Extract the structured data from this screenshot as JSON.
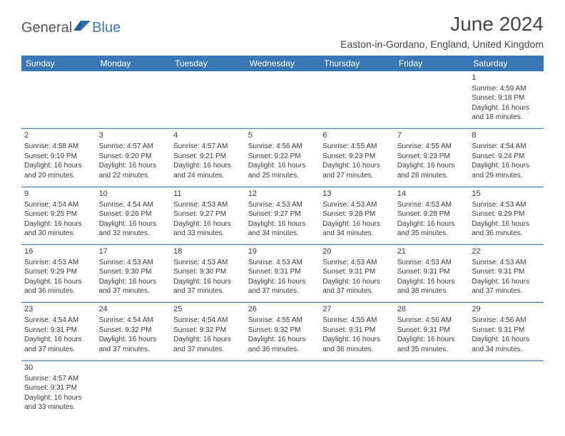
{
  "logo": {
    "general": "General",
    "blue": "Blue"
  },
  "header": {
    "title": "June 2024",
    "location": "Easton-in-Gordano, England, United Kingdom"
  },
  "colors": {
    "header_bg": "#3a78b5",
    "header_text": "#ffffff",
    "spacer_bg": "#eeeeee",
    "rule": "#3a78b5",
    "text": "#3a3a3a"
  },
  "daynames": [
    "Sunday",
    "Monday",
    "Tuesday",
    "Wednesday",
    "Thursday",
    "Friday",
    "Saturday"
  ],
  "weeks": [
    [
      null,
      null,
      null,
      null,
      null,
      null,
      {
        "n": "1",
        "sr": "Sunrise: 4:59 AM",
        "ss": "Sunset: 9:18 PM",
        "d1": "Daylight: 16 hours",
        "d2": "and 18 minutes."
      }
    ],
    [
      {
        "n": "2",
        "sr": "Sunrise: 4:58 AM",
        "ss": "Sunset: 9:19 PM",
        "d1": "Daylight: 16 hours",
        "d2": "and 20 minutes."
      },
      {
        "n": "3",
        "sr": "Sunrise: 4:57 AM",
        "ss": "Sunset: 9:20 PM",
        "d1": "Daylight: 16 hours",
        "d2": "and 22 minutes."
      },
      {
        "n": "4",
        "sr": "Sunrise: 4:57 AM",
        "ss": "Sunset: 9:21 PM",
        "d1": "Daylight: 16 hours",
        "d2": "and 24 minutes."
      },
      {
        "n": "5",
        "sr": "Sunrise: 4:56 AM",
        "ss": "Sunset: 9:22 PM",
        "d1": "Daylight: 16 hours",
        "d2": "and 25 minutes."
      },
      {
        "n": "6",
        "sr": "Sunrise: 4:55 AM",
        "ss": "Sunset: 9:23 PM",
        "d1": "Daylight: 16 hours",
        "d2": "and 27 minutes."
      },
      {
        "n": "7",
        "sr": "Sunrise: 4:55 AM",
        "ss": "Sunset: 9:23 PM",
        "d1": "Daylight: 16 hours",
        "d2": "and 28 minutes."
      },
      {
        "n": "8",
        "sr": "Sunrise: 4:54 AM",
        "ss": "Sunset: 9:24 PM",
        "d1": "Daylight: 16 hours",
        "d2": "and 29 minutes."
      }
    ],
    [
      {
        "n": "9",
        "sr": "Sunrise: 4:54 AM",
        "ss": "Sunset: 9:25 PM",
        "d1": "Daylight: 16 hours",
        "d2": "and 30 minutes."
      },
      {
        "n": "10",
        "sr": "Sunrise: 4:54 AM",
        "ss": "Sunset: 9:26 PM",
        "d1": "Daylight: 16 hours",
        "d2": "and 32 minutes."
      },
      {
        "n": "11",
        "sr": "Sunrise: 4:53 AM",
        "ss": "Sunset: 9:27 PM",
        "d1": "Daylight: 16 hours",
        "d2": "and 33 minutes."
      },
      {
        "n": "12",
        "sr": "Sunrise: 4:53 AM",
        "ss": "Sunset: 9:27 PM",
        "d1": "Daylight: 16 hours",
        "d2": "and 34 minutes."
      },
      {
        "n": "13",
        "sr": "Sunrise: 4:53 AM",
        "ss": "Sunset: 9:28 PM",
        "d1": "Daylight: 16 hours",
        "d2": "and 34 minutes."
      },
      {
        "n": "14",
        "sr": "Sunrise: 4:53 AM",
        "ss": "Sunset: 9:28 PM",
        "d1": "Daylight: 16 hours",
        "d2": "and 35 minutes."
      },
      {
        "n": "15",
        "sr": "Sunrise: 4:53 AM",
        "ss": "Sunset: 9:29 PM",
        "d1": "Daylight: 16 hours",
        "d2": "and 36 minutes."
      }
    ],
    [
      {
        "n": "16",
        "sr": "Sunrise: 4:53 AM",
        "ss": "Sunset: 9:29 PM",
        "d1": "Daylight: 16 hours",
        "d2": "and 36 minutes."
      },
      {
        "n": "17",
        "sr": "Sunrise: 4:53 AM",
        "ss": "Sunset: 9:30 PM",
        "d1": "Daylight: 16 hours",
        "d2": "and 37 minutes."
      },
      {
        "n": "18",
        "sr": "Sunrise: 4:53 AM",
        "ss": "Sunset: 9:30 PM",
        "d1": "Daylight: 16 hours",
        "d2": "and 37 minutes."
      },
      {
        "n": "19",
        "sr": "Sunrise: 4:53 AM",
        "ss": "Sunset: 9:31 PM",
        "d1": "Daylight: 16 hours",
        "d2": "and 37 minutes."
      },
      {
        "n": "20",
        "sr": "Sunrise: 4:53 AM",
        "ss": "Sunset: 9:31 PM",
        "d1": "Daylight: 16 hours",
        "d2": "and 37 minutes."
      },
      {
        "n": "21",
        "sr": "Sunrise: 4:53 AM",
        "ss": "Sunset: 9:31 PM",
        "d1": "Daylight: 16 hours",
        "d2": "and 38 minutes."
      },
      {
        "n": "22",
        "sr": "Sunrise: 4:53 AM",
        "ss": "Sunset: 9:31 PM",
        "d1": "Daylight: 16 hours",
        "d2": "and 37 minutes."
      }
    ],
    [
      {
        "n": "23",
        "sr": "Sunrise: 4:54 AM",
        "ss": "Sunset: 9:31 PM",
        "d1": "Daylight: 16 hours",
        "d2": "and 37 minutes."
      },
      {
        "n": "24",
        "sr": "Sunrise: 4:54 AM",
        "ss": "Sunset: 9:32 PM",
        "d1": "Daylight: 16 hours",
        "d2": "and 37 minutes."
      },
      {
        "n": "25",
        "sr": "Sunrise: 4:54 AM",
        "ss": "Sunset: 9:32 PM",
        "d1": "Daylight: 16 hours",
        "d2": "and 37 minutes."
      },
      {
        "n": "26",
        "sr": "Sunrise: 4:55 AM",
        "ss": "Sunset: 9:32 PM",
        "d1": "Daylight: 16 hours",
        "d2": "and 36 minutes."
      },
      {
        "n": "27",
        "sr": "Sunrise: 4:55 AM",
        "ss": "Sunset: 9:31 PM",
        "d1": "Daylight: 16 hours",
        "d2": "and 36 minutes."
      },
      {
        "n": "28",
        "sr": "Sunrise: 4:56 AM",
        "ss": "Sunset: 9:31 PM",
        "d1": "Daylight: 16 hours",
        "d2": "and 35 minutes."
      },
      {
        "n": "29",
        "sr": "Sunrise: 4:56 AM",
        "ss": "Sunset: 9:31 PM",
        "d1": "Daylight: 16 hours",
        "d2": "and 34 minutes."
      }
    ],
    [
      {
        "n": "30",
        "sr": "Sunrise: 4:57 AM",
        "ss": "Sunset: 9:31 PM",
        "d1": "Daylight: 16 hours",
        "d2": "and 33 minutes."
      },
      null,
      null,
      null,
      null,
      null,
      null
    ]
  ]
}
